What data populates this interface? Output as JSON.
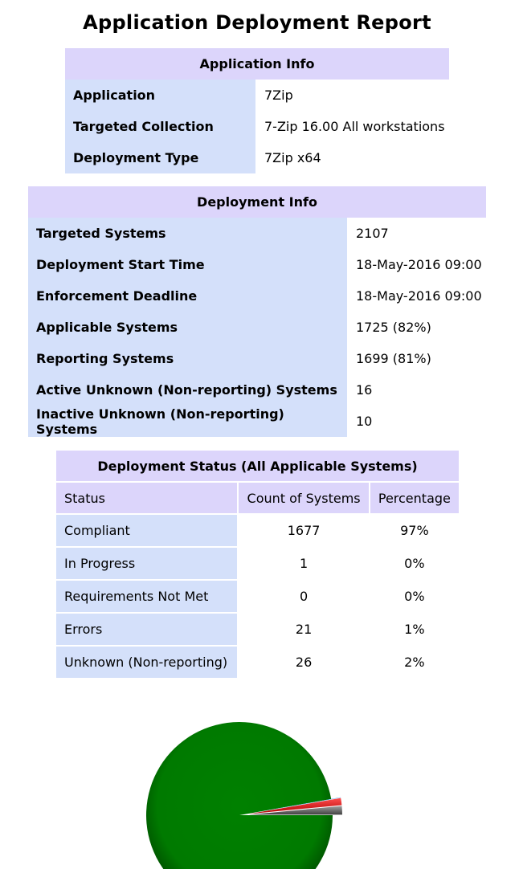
{
  "report": {
    "title": "Application Deployment Report"
  },
  "application_info": {
    "header": "Application Info",
    "rows": [
      {
        "label": "Application",
        "value": "7Zip"
      },
      {
        "label": "Targeted Collection",
        "value": "7-Zip 16.00 All workstations"
      },
      {
        "label": "Deployment Type",
        "value": "7Zip x64"
      }
    ]
  },
  "deployment_info": {
    "header": "Deployment Info",
    "rows": [
      {
        "label": "Targeted Systems",
        "value": "2107"
      },
      {
        "label": "Deployment Start Time",
        "value": "18-May-2016 09:00"
      },
      {
        "label": "Enforcement Deadline",
        "value": "18-May-2016 09:00"
      },
      {
        "label": "Applicable Systems",
        "value": "1725 (82%)"
      },
      {
        "label": "Reporting Systems",
        "value": "1699 (81%)"
      },
      {
        "label": "Active Unknown (Non-reporting) Systems",
        "value": "16"
      },
      {
        "label": "Inactive Unknown (Non-reporting) Systems",
        "value": "10"
      }
    ]
  },
  "deployment_status": {
    "header": "Deployment Status (All Applicable Systems)",
    "columns": [
      "Status",
      "Count of Systems",
      "Percentage"
    ],
    "rows": [
      {
        "status": "Compliant",
        "count": "1677",
        "percentage": "97%"
      },
      {
        "status": "In Progress",
        "count": "1",
        "percentage": "0%"
      },
      {
        "status": "Requirements Not Met",
        "count": "0",
        "percentage": "0%"
      },
      {
        "status": "Errors",
        "count": "21",
        "percentage": "1%"
      },
      {
        "status": "Unknown (Non-reporting)",
        "count": "26",
        "percentage": "2%"
      }
    ]
  },
  "chart_data": {
    "type": "pie",
    "title": "",
    "categories": [
      "Compliant",
      "In Progress",
      "Requirements Not Met",
      "Errors",
      "Unknown (Non-reporting)"
    ],
    "values": [
      1677,
      1,
      0,
      21,
      26
    ],
    "colors": [
      "#008000",
      "#1e90ff",
      "#ffd700",
      "#e00000",
      "#707070"
    ]
  }
}
